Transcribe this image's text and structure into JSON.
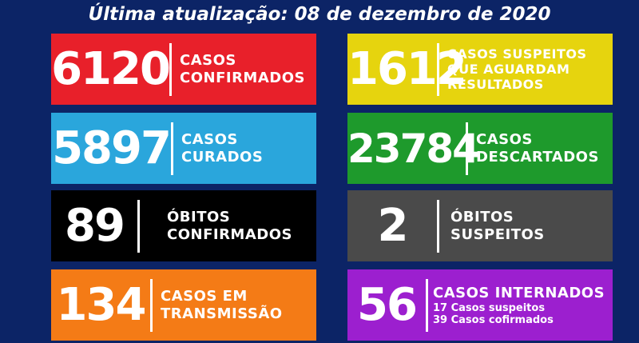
{
  "header": {
    "text": "Última atualização: 08 de dezembro de 2020"
  },
  "cards": [
    {
      "number": "6120",
      "label1": "CASOS",
      "label2": "CONFIRMADOS",
      "color": "#e8202a"
    },
    {
      "number": "1612",
      "label1": "CASOS SUSPEITOS",
      "label2": "QUE AGUARDAM",
      "label3": "RESULTADOS",
      "color": "#e6d40e"
    },
    {
      "number": "5897",
      "label1": "CASOS",
      "label2": "CURADOS",
      "color": "#2aa6dc"
    },
    {
      "number": "23784",
      "label1": "CASOS",
      "label2": "DESCARTADOS",
      "color": "#1e9a2c"
    },
    {
      "number": "89",
      "label1": "ÓBITOS",
      "label2": "CONFIRMADOS",
      "color": "#000000"
    },
    {
      "number": "2",
      "label1": "ÓBITOS",
      "label2": "SUSPEITOS",
      "color": "#4a4a4a"
    },
    {
      "number": "134",
      "label1": "CASOS EM",
      "label2": "TRANSMISSÃO",
      "color": "#f47b16"
    },
    {
      "number": "56",
      "label1": "CASOS INTERNADOS",
      "sub1": "17 Casos suspeitos",
      "sub2": "39 Casos cofirmados",
      "color": "#9c1fcf"
    }
  ]
}
